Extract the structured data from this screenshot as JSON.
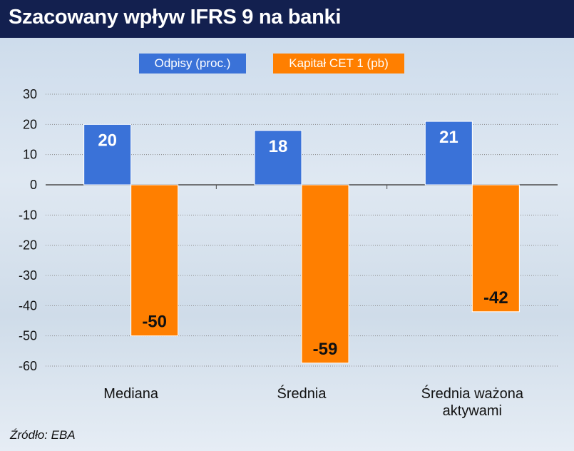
{
  "title": "Szacowany wpływ IFRS 9 na banki",
  "source": "Źródło: EBA",
  "colors": {
    "series1": "#3a72d8",
    "series2": "#ff7f00",
    "title_bg": "#13204f"
  },
  "chart_data": {
    "type": "bar",
    "categories": [
      [
        "Mediana"
      ],
      [
        "Średnia"
      ],
      [
        "Średnia ważona",
        "aktywami"
      ]
    ],
    "series": [
      {
        "name": "Odpisy (proc.)",
        "values": [
          20,
          18,
          21
        ]
      },
      {
        "name": "Kapitał CET 1 (pb)",
        "values": [
          -50,
          -59,
          -42
        ]
      }
    ],
    "yticks": [
      30,
      20,
      10,
      0,
      -10,
      -20,
      -30,
      -40,
      -50,
      -60
    ],
    "ylim": [
      -60,
      30
    ],
    "grid": true,
    "legend": "top-center"
  }
}
